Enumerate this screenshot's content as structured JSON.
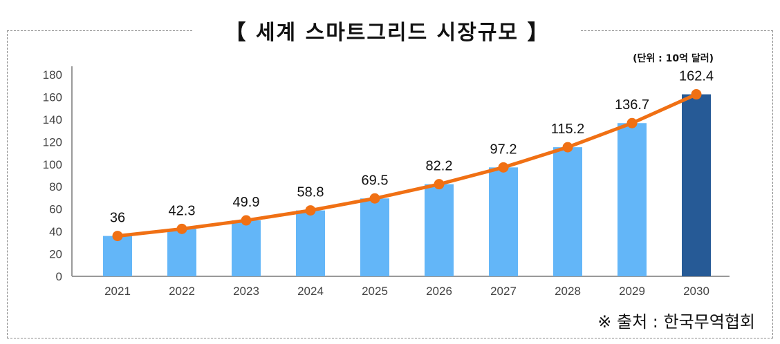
{
  "chart_data": {
    "type": "bar",
    "title": "【 세계 스마트그리드 시장규모 】",
    "unit_note": "(단위 : 10억 달러)",
    "source": "※ 출처 : 한국무역협회",
    "categories": [
      "2021",
      "2022",
      "2023",
      "2024",
      "2025",
      "2026",
      "2027",
      "2028",
      "2029",
      "2030"
    ],
    "values": [
      36,
      42.3,
      49.9,
      58.8,
      69.5,
      82.2,
      97.2,
      115.2,
      136.7,
      162.4
    ],
    "data_labels": [
      "36",
      "42.3",
      "49.9",
      "58.8",
      "69.5",
      "82.2",
      "97.2",
      "115.2",
      "136.7",
      "162.4"
    ],
    "ylim": [
      0,
      180
    ],
    "yticks": [
      0,
      20,
      40,
      60,
      80,
      100,
      120,
      140,
      160,
      180
    ],
    "grid": false,
    "overlay_line": true,
    "colors": {
      "bar": "#63b6f8",
      "bar_highlight": "#265a96",
      "line": "#f07014"
    }
  }
}
